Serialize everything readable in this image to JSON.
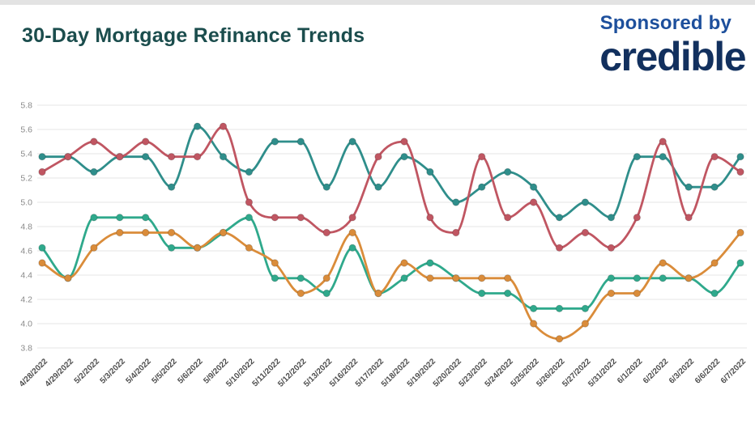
{
  "page": {
    "background_color": "#ffffff",
    "top_edge_color": "#e3e3e3"
  },
  "header": {
    "title": "30-Day Mortgage Refinance Trends",
    "title_color": "#1b4d4d",
    "sponsor": {
      "prefix": "Sponsored by",
      "prefix_color": "#1d4f9c",
      "brand": "credible",
      "brand_color": "#12305e"
    }
  },
  "chart_data": {
    "type": "line",
    "title": "30-Day Mortgage Refinance Trends",
    "xlabel": "",
    "ylabel": "",
    "ylim": [
      3.8,
      5.8
    ],
    "ytick_labels": [
      "5.8",
      "5.6",
      "5.4",
      "5.2",
      "5.0",
      "4.8",
      "4.6",
      "4.4",
      "4.2",
      "4.0",
      "3.8"
    ],
    "grid": "horizontal",
    "grid_color": "#e6e6e6",
    "ytick_color": "#8a8a8a",
    "xtick_color": "#4f4f4f",
    "legend": "none",
    "marker_radius": 4.2,
    "line_width": 2.8,
    "categories": [
      "4/28/2022",
      "4/29/2022",
      "5/2/2022",
      "5/3/2022",
      "5/4/2022",
      "5/5/2022",
      "5/6/2022",
      "5/9/2022",
      "5/10/2022",
      "5/11/2022",
      "5/12/2022",
      "5/13/2022",
      "5/16/2022",
      "5/17/2022",
      "5/18/2022",
      "5/19/2022",
      "5/20/2022",
      "5/23/2022",
      "5/24/2022",
      "5/25/2022",
      "5/26/2022",
      "5/27/2022",
      "5/31/2022",
      "6/1/2022",
      "6/2/2022",
      "6/3/2022",
      "6/6/2022",
      "6/7/2022"
    ],
    "series": [
      {
        "name": "teal-rate-series",
        "color": "#2f8e8b",
        "values": [
          5.375,
          5.375,
          5.25,
          5.375,
          5.375,
          5.125,
          5.625,
          5.375,
          5.25,
          5.5,
          5.5,
          5.125,
          5.5,
          5.125,
          5.375,
          5.25,
          5.0,
          5.125,
          5.25,
          5.125,
          4.875,
          5.0,
          4.875,
          5.375,
          5.375,
          5.125,
          5.125,
          5.375
        ]
      },
      {
        "name": "red-rate-series",
        "color": "#c05662",
        "values": [
          5.25,
          5.375,
          5.5,
          5.375,
          5.5,
          5.375,
          5.375,
          5.625,
          5.0,
          4.875,
          4.875,
          4.75,
          4.875,
          5.375,
          5.5,
          4.875,
          4.75,
          5.375,
          4.875,
          5.0,
          4.625,
          4.75,
          4.625,
          4.875,
          5.5,
          4.875,
          5.375,
          5.25
        ]
      },
      {
        "name": "green-rate-series",
        "color": "#2fa98c",
        "values": [
          4.625,
          4.375,
          4.875,
          4.875,
          4.875,
          4.625,
          4.625,
          4.75,
          4.875,
          4.375,
          4.375,
          4.25,
          4.625,
          4.25,
          4.375,
          4.5,
          4.375,
          4.25,
          4.25,
          4.125,
          4.125,
          4.125,
          4.375,
          4.375,
          4.375,
          4.375,
          4.25,
          4.5
        ]
      },
      {
        "name": "orange-rate-series",
        "color": "#da8c3a",
        "values": [
          4.5,
          4.375,
          4.625,
          4.75,
          4.75,
          4.75,
          4.625,
          4.75,
          4.625,
          4.5,
          4.25,
          4.375,
          4.75,
          4.25,
          4.5,
          4.375,
          4.375,
          4.375,
          4.375,
          4.0,
          3.875,
          4.0,
          4.25,
          4.25,
          4.5,
          4.375,
          4.5,
          4.75
        ]
      }
    ]
  }
}
